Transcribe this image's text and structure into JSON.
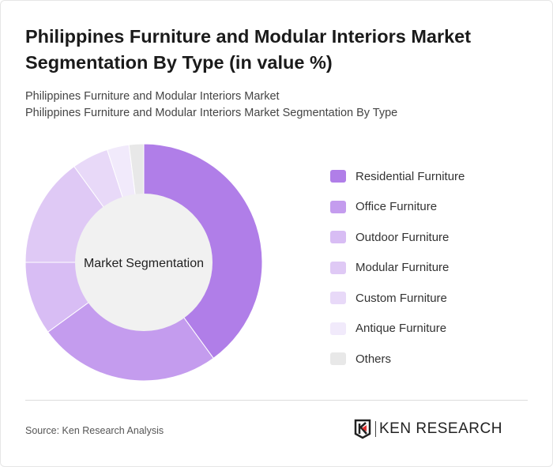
{
  "title": "Philippines Furniture and Modular Interiors Market Segmentation By Type (in value %)",
  "subtitle1": "Philippines Furniture and Modular Interiors Market",
  "subtitle2": "Philippines Furniture and Modular Interiors Market Segmentation By Type",
  "source": "Source: Ken Research Analysis",
  "logo_text": "KEN RESEARCH",
  "chart_data": {
    "type": "pie",
    "donut": true,
    "center_label": "Market Segmentation",
    "legend_position": "right",
    "categories": [
      "Residential Furniture",
      "Office Furniture",
      "Outdoor Furniture",
      "Modular Furniture",
      "Custom Furniture",
      "Antique Furniture",
      "Others"
    ],
    "values": [
      40,
      25,
      10,
      15,
      5,
      3,
      2
    ],
    "colors": [
      "#b07ee8",
      "#c49cee",
      "#d8bdf4",
      "#dfc9f5",
      "#e8d9f8",
      "#f1eafb",
      "#e8e8e8"
    ]
  }
}
